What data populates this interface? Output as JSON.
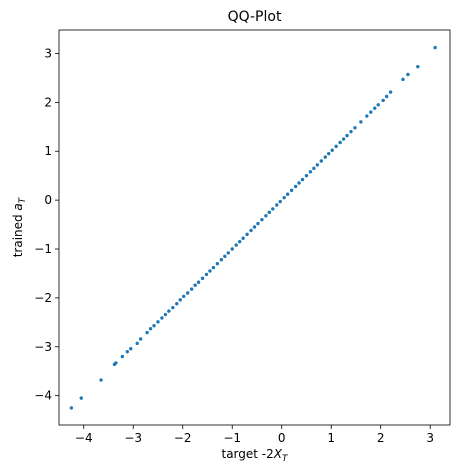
{
  "chart_data": {
    "type": "scatter",
    "title": "QQ-Plot",
    "xlabel": {
      "main": "target -2",
      "var": "X",
      "sub": "T"
    },
    "ylabel": {
      "main": "trained ",
      "var": "a",
      "sub": "T"
    },
    "xlim": [
      -4.5,
      3.4
    ],
    "ylim": [
      -4.6,
      3.48
    ],
    "xticks": [
      -4,
      -3,
      -2,
      -1,
      0,
      1,
      2,
      3
    ],
    "yticks": [
      -4,
      -3,
      -2,
      -1,
      0,
      1,
      2,
      3
    ],
    "xtick_labels": [
      "−4",
      "−3",
      "−2",
      "−1",
      "0",
      "1",
      "2",
      "3"
    ],
    "ytick_labels": [
      "−4",
      "−3",
      "−2",
      "−1",
      "0",
      "1",
      "2",
      "3"
    ],
    "grid": false,
    "marker_color": "#1f77b4",
    "series": [
      {
        "points": [
          [
            -4.25,
            -4.25
          ],
          [
            -4.05,
            -4.05
          ],
          [
            -3.65,
            -3.68
          ],
          [
            -3.38,
            -3.36
          ],
          [
            -3.35,
            -3.33
          ],
          [
            -3.22,
            -3.2
          ],
          [
            -3.12,
            -3.1
          ],
          [
            -3.05,
            -3.04
          ],
          [
            -2.92,
            -2.93
          ],
          [
            -2.85,
            -2.84
          ],
          [
            -2.72,
            -2.71
          ],
          [
            -2.65,
            -2.63
          ],
          [
            -2.58,
            -2.57
          ],
          [
            -2.5,
            -2.49
          ],
          [
            -2.42,
            -2.41
          ],
          [
            -2.35,
            -2.34
          ],
          [
            -2.28,
            -2.27
          ],
          [
            -2.2,
            -2.2
          ],
          [
            -2.12,
            -2.12
          ],
          [
            -2.05,
            -2.04
          ],
          [
            -1.98,
            -1.97
          ],
          [
            -1.9,
            -1.9
          ],
          [
            -1.82,
            -1.82
          ],
          [
            -1.75,
            -1.74
          ],
          [
            -1.68,
            -1.68
          ],
          [
            -1.6,
            -1.6
          ],
          [
            -1.52,
            -1.52
          ],
          [
            -1.45,
            -1.45
          ],
          [
            -1.38,
            -1.38
          ],
          [
            -1.3,
            -1.3
          ],
          [
            -1.22,
            -1.22
          ],
          [
            -1.15,
            -1.15
          ],
          [
            -1.08,
            -1.08
          ],
          [
            -1.0,
            -1.0
          ],
          [
            -0.92,
            -0.92
          ],
          [
            -0.85,
            -0.85
          ],
          [
            -0.78,
            -0.78
          ],
          [
            -0.7,
            -0.7
          ],
          [
            -0.62,
            -0.62
          ],
          [
            -0.55,
            -0.55
          ],
          [
            -0.48,
            -0.48
          ],
          [
            -0.4,
            -0.4
          ],
          [
            -0.32,
            -0.32
          ],
          [
            -0.25,
            -0.25
          ],
          [
            -0.18,
            -0.18
          ],
          [
            -0.1,
            -0.1
          ],
          [
            -0.03,
            -0.03
          ],
          [
            0.05,
            0.05
          ],
          [
            0.12,
            0.12
          ],
          [
            0.2,
            0.2
          ],
          [
            0.28,
            0.28
          ],
          [
            0.35,
            0.35
          ],
          [
            0.42,
            0.42
          ],
          [
            0.5,
            0.5
          ],
          [
            0.58,
            0.58
          ],
          [
            0.65,
            0.65
          ],
          [
            0.72,
            0.72
          ],
          [
            0.8,
            0.8
          ],
          [
            0.88,
            0.88
          ],
          [
            0.95,
            0.95
          ],
          [
            1.02,
            1.02
          ],
          [
            1.1,
            1.1
          ],
          [
            1.18,
            1.18
          ],
          [
            1.25,
            1.25
          ],
          [
            1.32,
            1.32
          ],
          [
            1.4,
            1.4
          ],
          [
            1.48,
            1.48
          ],
          [
            1.6,
            1.6
          ],
          [
            1.72,
            1.72
          ],
          [
            1.8,
            1.8
          ],
          [
            1.88,
            1.88
          ],
          [
            1.95,
            1.95
          ],
          [
            2.05,
            2.04
          ],
          [
            2.12,
            2.12
          ],
          [
            2.2,
            2.21
          ],
          [
            2.45,
            2.47
          ],
          [
            2.55,
            2.57
          ],
          [
            2.75,
            2.73
          ],
          [
            3.1,
            3.12
          ]
        ]
      }
    ]
  }
}
